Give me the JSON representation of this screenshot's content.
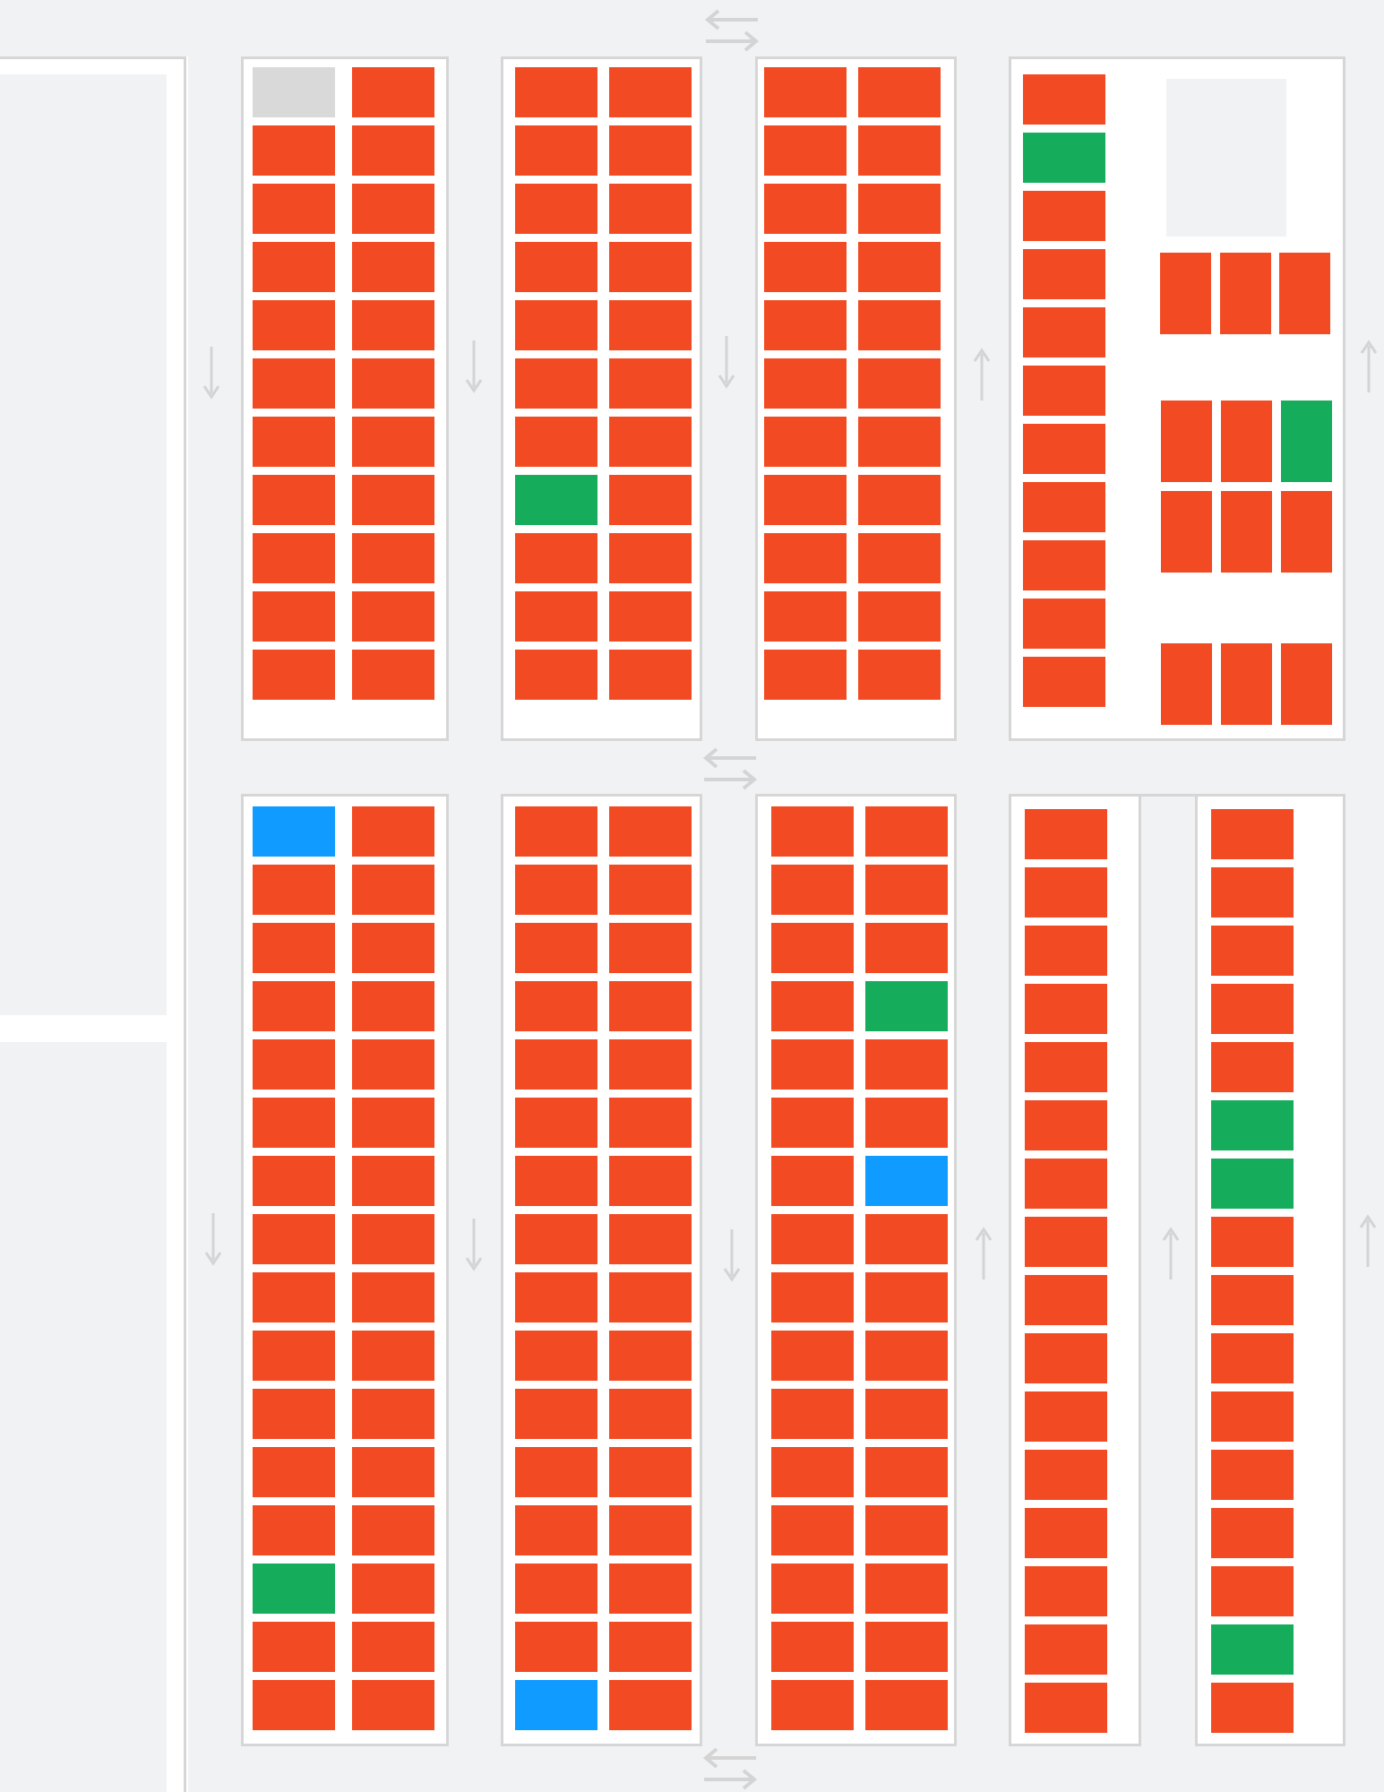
{
  "status_colors": {
    "occupied": "#f24a22",
    "available": "#15ad5c",
    "reserved": "#0f9bff",
    "disabled": "#d9d9d9"
  },
  "icons": {
    "direction_down": "arrow-down-icon",
    "direction_up": "arrow-up-icon",
    "two_way": "two-way-arrow-icon"
  },
  "blocks": [
    {
      "name": "block-top-1",
      "slots": [
        "disabled",
        "occupied",
        "occupied",
        "occupied",
        "occupied",
        "occupied",
        "occupied",
        "occupied",
        "occupied",
        "occupied",
        "occupied",
        "occupied",
        "occupied",
        "occupied",
        "occupied",
        "occupied",
        "occupied",
        "occupied",
        "occupied",
        "occupied",
        "occupied",
        "occupied"
      ]
    },
    {
      "name": "block-top-2",
      "slots": [
        "occupied",
        "occupied",
        "occupied",
        "occupied",
        "occupied",
        "occupied",
        "occupied",
        "occupied",
        "occupied",
        "occupied",
        "occupied",
        "occupied",
        "occupied",
        "occupied",
        "available",
        "occupied",
        "occupied",
        "occupied",
        "occupied",
        "occupied",
        "occupied",
        "occupied"
      ]
    },
    {
      "name": "block-top-3",
      "slots": [
        "occupied",
        "occupied",
        "occupied",
        "occupied",
        "occupied",
        "occupied",
        "occupied",
        "occupied",
        "occupied",
        "occupied",
        "occupied",
        "occupied",
        "occupied",
        "occupied",
        "occupied",
        "occupied",
        "occupied",
        "occupied",
        "occupied",
        "occupied",
        "occupied",
        "occupied"
      ]
    },
    {
      "name": "block-top-4-column",
      "slots": [
        "occupied",
        "available",
        "occupied",
        "occupied",
        "occupied",
        "occupied",
        "occupied",
        "occupied",
        "occupied",
        "occupied",
        "occupied"
      ]
    },
    {
      "name": "block-top-4-cluster",
      "slots": [
        "occupied",
        "occupied",
        "occupied",
        "occupied",
        "occupied",
        "available",
        "occupied",
        "occupied",
        "occupied",
        "occupied",
        "occupied",
        "occupied"
      ]
    },
    {
      "name": "block-bottom-1",
      "slots": [
        "reserved",
        "occupied",
        "occupied",
        "occupied",
        "occupied",
        "occupied",
        "occupied",
        "occupied",
        "occupied",
        "occupied",
        "occupied",
        "occupied",
        "occupied",
        "occupied",
        "occupied",
        "occupied",
        "occupied",
        "occupied",
        "occupied",
        "occupied",
        "occupied",
        "occupied",
        "occupied",
        "occupied",
        "occupied",
        "occupied",
        "available",
        "occupied",
        "occupied",
        "occupied",
        "occupied",
        "occupied"
      ]
    },
    {
      "name": "block-bottom-2",
      "slots": [
        "occupied",
        "occupied",
        "occupied",
        "occupied",
        "occupied",
        "occupied",
        "occupied",
        "occupied",
        "occupied",
        "occupied",
        "occupied",
        "occupied",
        "occupied",
        "occupied",
        "occupied",
        "occupied",
        "occupied",
        "occupied",
        "occupied",
        "occupied",
        "occupied",
        "occupied",
        "occupied",
        "occupied",
        "occupied",
        "occupied",
        "occupied",
        "occupied",
        "occupied",
        "occupied",
        "reserved",
        "occupied"
      ]
    },
    {
      "name": "block-bottom-3",
      "slots": [
        "occupied",
        "occupied",
        "occupied",
        "occupied",
        "occupied",
        "occupied",
        "occupied",
        "available",
        "occupied",
        "occupied",
        "occupied",
        "occupied",
        "occupied",
        "reserved",
        "occupied",
        "occupied",
        "occupied",
        "occupied",
        "occupied",
        "occupied",
        "occupied",
        "occupied",
        "occupied",
        "occupied",
        "occupied",
        "occupied",
        "occupied",
        "occupied",
        "occupied",
        "occupied",
        "occupied",
        "occupied"
      ]
    },
    {
      "name": "block-bottom-4",
      "slots": [
        "occupied",
        "occupied",
        "occupied",
        "occupied",
        "occupied",
        "occupied",
        "occupied",
        "occupied",
        "occupied",
        "occupied",
        "occupied",
        "occupied",
        "occupied",
        "occupied",
        "occupied",
        "occupied"
      ]
    },
    {
      "name": "block-bottom-5",
      "slots": [
        "occupied",
        "occupied",
        "occupied",
        "occupied",
        "occupied",
        "available",
        "available",
        "occupied",
        "occupied",
        "occupied",
        "occupied",
        "occupied",
        "occupied",
        "occupied",
        "available",
        "occupied"
      ]
    }
  ]
}
